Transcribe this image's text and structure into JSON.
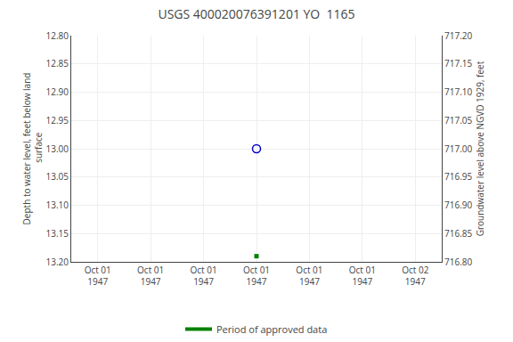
{
  "chart_data": {
    "type": "scatter",
    "title": "USGS 400020076391201 YO  1165",
    "ylabel": "Depth to water level, feet below land\n surface",
    "y2label": "Groundwater level above NGVD 1929, feet",
    "categories": [
      "Oct 01\n1947",
      "Oct 01\n1947",
      "Oct 01\n1947",
      "Oct 01\n1947",
      "Oct 01\n1947",
      "Oct 01\n1947",
      "Oct 02\n1947"
    ],
    "ylim": [
      13.2,
      12.8
    ],
    "yticks": [
      {
        "value": 12.8,
        "label": "12.80"
      },
      12.85,
      {
        "value": 12.9,
        "label": "12.90"
      },
      12.95,
      {
        "value": 13.0,
        "label": "13.00"
      },
      13.05,
      {
        "value": 13.1,
        "label": "13.10"
      },
      13.15,
      {
        "value": 13.2,
        "label": "13.20"
      }
    ],
    "y2lim": [
      716.8,
      717.2
    ],
    "y2ticks": [
      {
        "value": 717.2,
        "label": "717.20"
      },
      717.15,
      {
        "value": 717.1,
        "label": "717.10"
      },
      717.05,
      {
        "value": 717.0,
        "label": "717.00"
      },
      716.95,
      {
        "value": 716.9,
        "label": "716.90"
      },
      716.85,
      {
        "value": 716.8,
        "label": "716.80"
      }
    ],
    "grid": true,
    "legend": "bottom",
    "series": [
      {
        "type": "scatter",
        "marker": "open_circle",
        "color": "#0000cc",
        "values": [
          null,
          null,
          null,
          13.0,
          null,
          null,
          null
        ]
      },
      {
        "type": "scatter",
        "marker": "square",
        "color": "#008000",
        "values": [
          null,
          null,
          null,
          13.19,
          null,
          null,
          null
        ]
      },
      {
        "type": "line",
        "name": "Period of approved data",
        "color": "#008000",
        "values": [
          null,
          null,
          null,
          null,
          null,
          null,
          null
        ]
      }
    ]
  }
}
